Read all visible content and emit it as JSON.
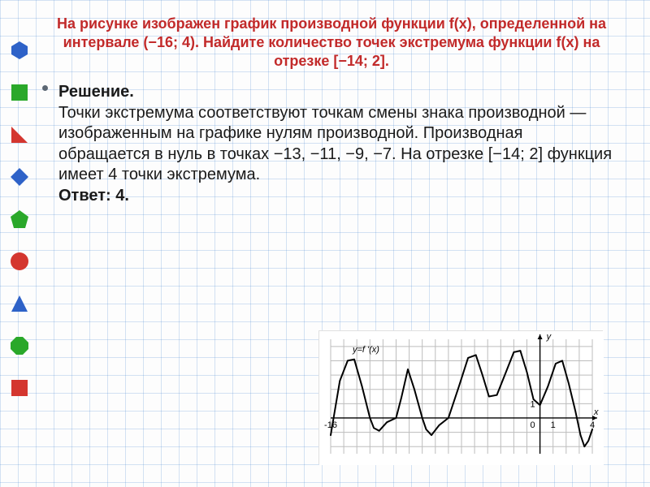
{
  "headline": "На рисунке изображен график производной функции f(x), определенной на интервале (−16; 4). Найдите количество точек экстремума функции f(x) на отрезке [−14; 2].",
  "solution": {
    "label": "Решение.",
    "text": "Точки экстремума соответствуют точкам смены знака производной — изображенным на графике нулям производной. Производная обращается в нуль в точках −13, −11, −9, −7. На отрезке [−14; 2] функция имеет 4 точки экстремума.",
    "answer_label": "Ответ: 4."
  },
  "sidebar_shapes": [
    {
      "type": "hexagon",
      "fill": "#2e62c8"
    },
    {
      "type": "square",
      "fill": "#2aa82a"
    },
    {
      "type": "right-triangle",
      "fill": "#d4362f"
    },
    {
      "type": "diamond",
      "fill": "#2e62c8"
    },
    {
      "type": "pentagon",
      "fill": "#2aa82a"
    },
    {
      "type": "circle",
      "fill": "#d4362f"
    },
    {
      "type": "iso-triangle",
      "fill": "#2e62c8"
    },
    {
      "type": "octagon",
      "fill": "#2aa82a"
    },
    {
      "type": "square",
      "fill": "#d4362f"
    }
  ],
  "chart": {
    "type": "line",
    "label": "y=f '(x)",
    "x_domain": [
      -16,
      4
    ],
    "y_domain": [
      -2.5,
      5.5
    ],
    "x_ticks": [
      -16,
      1,
      4
    ],
    "y_ticks": [
      1
    ],
    "origin_label": "0",
    "axis_labels": {
      "x": "x",
      "y": "y"
    },
    "axis_color": "#000000",
    "grid_color": "#bdbdbd",
    "curve_color": "#000000",
    "curve_width": 2,
    "background": "#ffffff",
    "zeros": [
      -13,
      -11,
      -9,
      -7
    ],
    "curve": [
      [
        -16,
        -1.2
      ],
      [
        -15.3,
        2.6
      ],
      [
        -14.7,
        4.0
      ],
      [
        -14.2,
        4.1
      ],
      [
        -13.6,
        2.2
      ],
      [
        -13,
        0
      ],
      [
        -12.7,
        -0.7
      ],
      [
        -12.3,
        -0.9
      ],
      [
        -11.7,
        -0.3
      ],
      [
        -11,
        0
      ],
      [
        -10.6,
        1.4
      ],
      [
        -10.1,
        3.4
      ],
      [
        -9.6,
        2.0
      ],
      [
        -9,
        0
      ],
      [
        -8.7,
        -0.8
      ],
      [
        -8.3,
        -1.2
      ],
      [
        -7.7,
        -0.5
      ],
      [
        -7,
        0
      ],
      [
        -6.2,
        2.2
      ],
      [
        -5.5,
        4.2
      ],
      [
        -4.9,
        4.4
      ],
      [
        -4.4,
        3.0
      ],
      [
        -3.9,
        1.5
      ],
      [
        -3.3,
        1.6
      ],
      [
        -2.6,
        3.2
      ],
      [
        -2.0,
        4.6
      ],
      [
        -1.5,
        4.7
      ],
      [
        -1.0,
        3.2
      ],
      [
        -0.5,
        1.3
      ],
      [
        0.0,
        0.9
      ],
      [
        0.6,
        2.2
      ],
      [
        1.2,
        3.8
      ],
      [
        1.7,
        4.0
      ],
      [
        2.2,
        2.4
      ],
      [
        2.7,
        0.5
      ],
      [
        3.1,
        -1.2
      ],
      [
        3.4,
        -2.0
      ],
      [
        3.7,
        -1.6
      ],
      [
        4.0,
        -0.8
      ]
    ]
  }
}
